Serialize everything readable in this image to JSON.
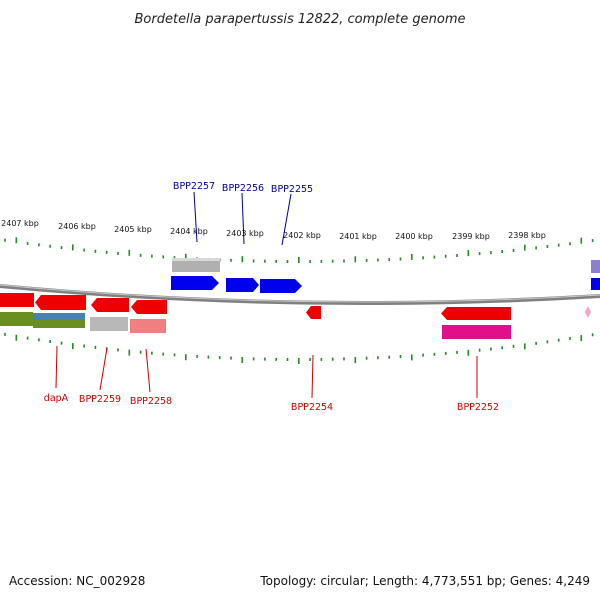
{
  "title": "Bordetella parapertussis 12822, complete genome",
  "footer": {
    "accession": "Accession: NC_002928",
    "summary": "Topology: circular; Length: 4,773,551 bp; Genes: 4,249"
  },
  "ticks": [
    "2407 kbp",
    "2406 kbp",
    "2405 kbp",
    "2404 kbp",
    "2403 kbp",
    "2402 kbp",
    "2401 kbp",
    "2400 kbp",
    "2399 kbp",
    "2398 kbp"
  ],
  "labels_top": [
    "BPP2257",
    "BPP2256",
    "BPP2255"
  ],
  "labels_bottom": [
    "dapA",
    "BPP2259",
    "BPP2258",
    "BPP2254",
    "BPP2252"
  ],
  "colors": {
    "forward_gene": "#0000ee",
    "reverse_gene": "#ee0000",
    "top_label": "#00008b",
    "bottom_label": "#cc0000",
    "tick": "#228b22",
    "backbone": "#808080",
    "gray_feature": "#b0b0b0",
    "pink_feature": "#f08080",
    "magenta_feature": "#e0108a",
    "olive_feature": "#6b8e23",
    "steelblue_feature": "#4682b4",
    "purple_feature": "#8a7fd0",
    "lightpink_feature": "#f4a6c0"
  }
}
